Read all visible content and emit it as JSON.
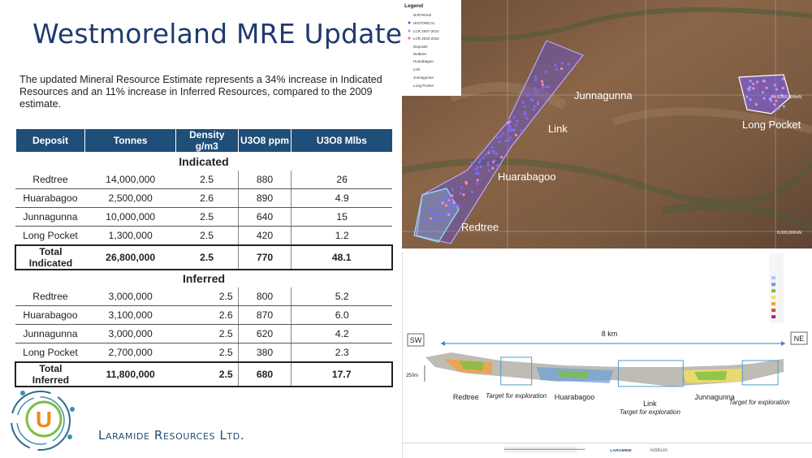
{
  "title": "Westmoreland MRE Update",
  "intro": "The updated Mineral Resource Estimate represents a 34% increase in Indicated Resources and an 11% increase in Inferred Resources, compared to the 2009 estimate.",
  "table": {
    "headers": [
      "Deposit",
      "Tonnes",
      "Density g/m3",
      "U3O8 ppm",
      "U3O8 Mlbs"
    ],
    "indicated_label": "Indicated",
    "indicated": [
      [
        "Redtree",
        "14,000,000",
        "2.5",
        "880",
        "26"
      ],
      [
        "Huarabagoo",
        "2,500,000",
        "2.6",
        "890",
        "4.9"
      ],
      [
        "Junnagunna",
        "10,000,000",
        "2.5",
        "640",
        "15"
      ],
      [
        "Long Pocket",
        "1,300,000",
        "2.5",
        "420",
        "1.2"
      ]
    ],
    "indicated_total": [
      "Total Indicated",
      "26,800,000",
      "2.5",
      "770",
      "48.1"
    ],
    "inferred_label": "Inferred",
    "inferred": [
      [
        "Redtree",
        "3,000,000",
        "2.5",
        "800",
        "5.2"
      ],
      [
        "Huarabagoo",
        "3,100,000",
        "2.6",
        "870",
        "6.0"
      ],
      [
        "Junnagunna",
        "3,000,000",
        "2.5",
        "620",
        "4.2"
      ],
      [
        "Long Pocket",
        "2,700,000",
        "2.5",
        "380",
        "2.3"
      ]
    ],
    "inferred_total": [
      "Total Inferred",
      "11,800,000",
      "2.5",
      "680",
      "17.7"
    ]
  },
  "company": "Laramide Resources Ltd.",
  "logo_letter": "U",
  "map": {
    "legend_title": "Legend",
    "legend_items": [
      "Drill Period",
      "HISTORICAL",
      "LCR 2007-2012",
      "LCR 2022-2024",
      "Deposits",
      "Redtree",
      "Huarabagoo",
      "Link",
      "Junnagunna",
      "Long Pocket"
    ],
    "labels": {
      "junnagunna": "Junnagunna",
      "link": "Link",
      "huarabagoo": "Huarabagoo",
      "redtree": "Redtree",
      "long_pocket": "Long Pocket"
    },
    "grid_labels": [
      "8,050,000mN",
      "8,000,000mN"
    ],
    "colors": {
      "terrain": "#7a5a40",
      "outline_purple": "#b9a6ff",
      "outline_cyan": "#8fe3ff",
      "drill_blue": "#5a4cff"
    }
  },
  "section": {
    "sw": "SW",
    "ne": "NE",
    "scale": "8 km",
    "depth": "250m",
    "labels": {
      "redtree": "Redtree",
      "target1": "Target for exploration",
      "huarabagoo": "Huarabagoo",
      "link": "Link",
      "link_target": "Target for exploration",
      "junnagunna": "Junnagunna",
      "target2": "Target for exploration"
    },
    "footer_logo": "LARAMIDE",
    "footer_text": "Addison"
  }
}
